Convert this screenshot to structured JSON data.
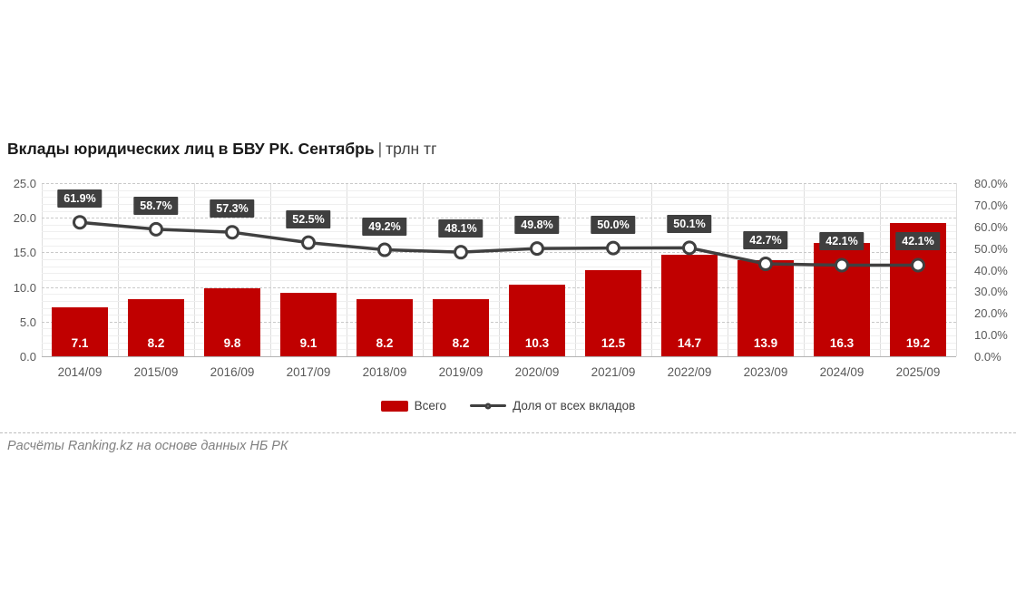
{
  "title": {
    "main": "Вклады юридических лиц в БВУ РК. Сентябрь",
    "separator": "|",
    "unit": "трлн тг"
  },
  "chart_data": {
    "type": "bar",
    "categories": [
      "2014/09",
      "2015/09",
      "2016/09",
      "2017/09",
      "2018/09",
      "2019/09",
      "2020/09",
      "2021/09",
      "2022/09",
      "2023/09",
      "2024/09",
      "2025/09"
    ],
    "series": [
      {
        "name": "Всего",
        "type": "bar",
        "axis": "left",
        "color": "#c00000",
        "values": [
          7.1,
          8.2,
          9.8,
          9.1,
          8.2,
          8.2,
          10.3,
          12.5,
          14.7,
          13.9,
          16.3,
          19.2
        ]
      },
      {
        "name": "Доля от всех вкладов",
        "type": "line",
        "axis": "right",
        "color": "#404040",
        "marker": "circle-white",
        "unit": "%",
        "values": [
          61.9,
          58.7,
          57.3,
          52.5,
          49.2,
          48.1,
          49.8,
          50.0,
          50.1,
          42.7,
          42.1,
          42.1
        ]
      }
    ],
    "left_axis": {
      "min": 0,
      "max": 25,
      "tick_step": 5,
      "minor_step": 1,
      "tick_labels": [
        "0.0",
        "5.0",
        "10.0",
        "15.0",
        "20.0",
        "25.0"
      ]
    },
    "right_axis": {
      "min": 0,
      "max": 80,
      "tick_step": 10,
      "tick_labels": [
        "0.0%",
        "10.0%",
        "20.0%",
        "30.0%",
        "40.0%",
        "50.0%",
        "60.0%",
        "70.0%",
        "80.0%"
      ]
    },
    "grid": {
      "horizontal_major": "dashed",
      "horizontal_minor": "solid",
      "vertical": "solid"
    },
    "legend_position": "bottom",
    "title": "Вклады юридических лиц в БВУ РК. Сентябрь | трлн тг"
  },
  "legend": {
    "items": [
      {
        "label": "Всего",
        "marker": "bar-swatch",
        "color": "#c00000"
      },
      {
        "label": "Доля от всех вкладов",
        "marker": "line-circle",
        "color": "#404040"
      }
    ]
  },
  "footer": {
    "text": "Расчёты Ranking.kz на основе данных НБ РК"
  },
  "colors": {
    "bar": "#c00000",
    "line": "#404040",
    "label_box": "#3f3f3f",
    "axis_text": "#595959"
  }
}
